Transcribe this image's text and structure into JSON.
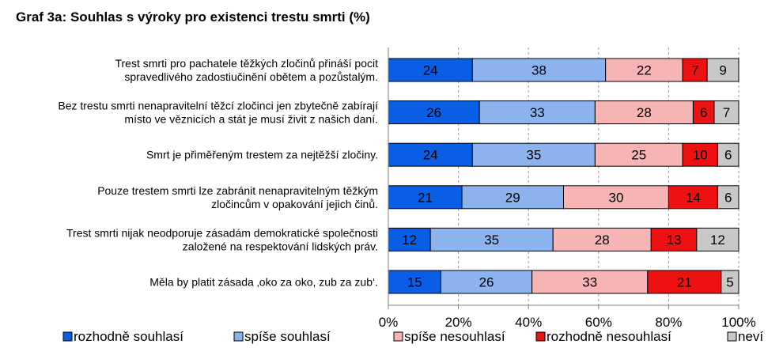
{
  "chart_data": {
    "type": "bar",
    "orientation": "horizontal",
    "stacked": true,
    "title": "Graf 3a: Souhlas s výroky pro existenci trestu smrti (%)",
    "categories": [
      [
        "Trest smrti pro pachatele těžkých zločinů přináší pocit",
        "spravedlivého zadostiučinění obětem a pozůstalým."
      ],
      [
        "Bez trestu smrti nenapravitelní těžcí zločinci jen zbytečně zabírají",
        "místo ve věznicích a stát je musí živit z našich daní."
      ],
      [
        "Smrt je přiměřeným trestem za nejtěžší zločiny."
      ],
      [
        "Pouze trestem smrti lze zabránit nenapravitelným těžkým",
        "zločincům v opakování jejich činů."
      ],
      [
        "Trest smrti nijak neodporuje zásadám demokratické společnosti",
        "založené na respektování lidských práv."
      ],
      [
        "Měla by platit zásada ‚oko za oko, zub za zub‘."
      ]
    ],
    "series": [
      {
        "name": "rozhodně souhlasí",
        "color": "#0a5ee6",
        "values": [
          24,
          26,
          24,
          21,
          12,
          15
        ]
      },
      {
        "name": "spíše souhlasí",
        "color": "#8db3ef",
        "values": [
          38,
          33,
          35,
          29,
          35,
          26
        ]
      },
      {
        "name": "spíše nesouhlasí",
        "color": "#f7b4b4",
        "values": [
          22,
          28,
          25,
          30,
          28,
          33
        ]
      },
      {
        "name": "rozhodně nesouhlasí",
        "color": "#ee1111",
        "values": [
          7,
          6,
          10,
          14,
          13,
          21
        ]
      },
      {
        "name": "neví",
        "color": "#c8c8c8",
        "values": [
          9,
          7,
          6,
          6,
          12,
          5
        ]
      }
    ],
    "xlim": [
      0,
      100
    ],
    "x_ticks": [
      "0%",
      "20%",
      "40%",
      "60%",
      "80%",
      "100%"
    ],
    "grid": "vertical dashed",
    "legend_position": "bottom"
  }
}
